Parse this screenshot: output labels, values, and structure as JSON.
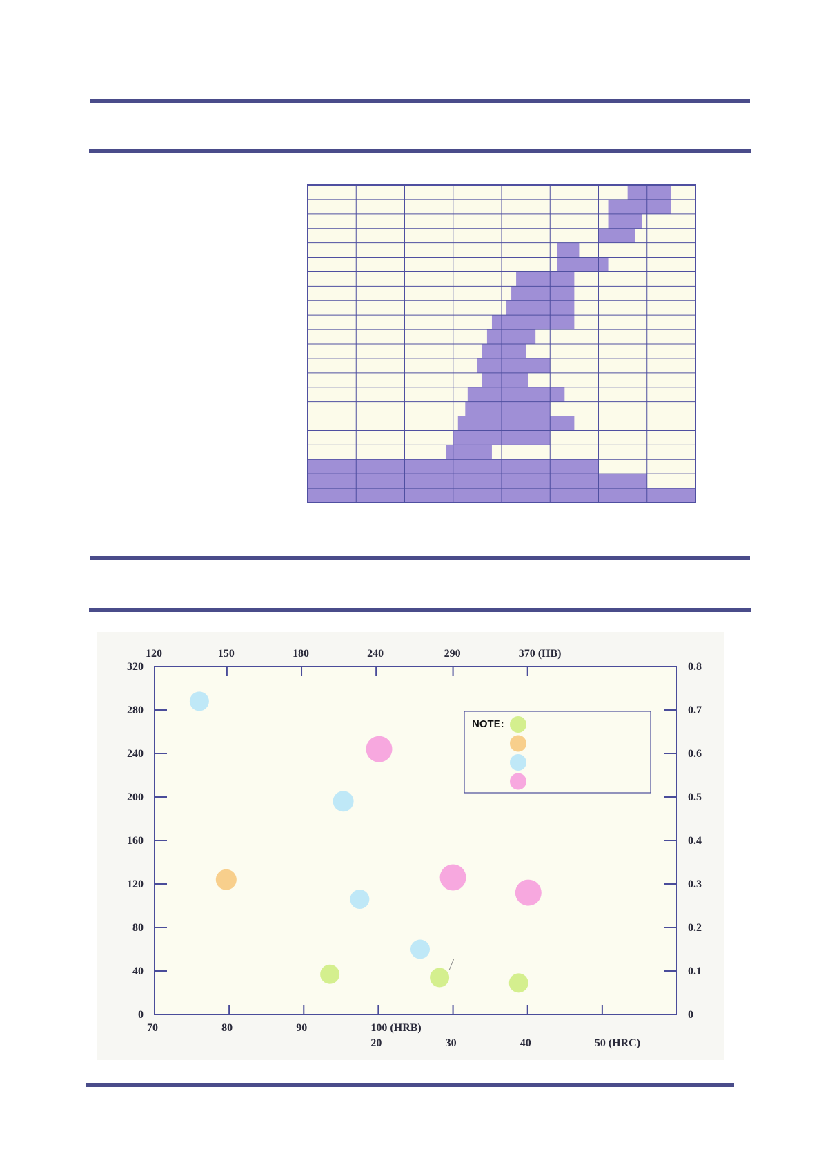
{
  "colors": {
    "rule": "#4a4c8a",
    "grid_line": "#4f4fa0",
    "grid_empty": "#fcfbea",
    "grid_filled": "#9f8fd6",
    "plot_bg": "#fcfcf0",
    "axis": "#4a4c9a",
    "green": "#d4ef8e",
    "orange": "#f8cf8c",
    "blue": "#bfe8f7",
    "pink": "#f7a8df"
  },
  "chart_data": [
    {
      "type": "heatmap",
      "title": "",
      "grid": {
        "cols": 8,
        "rows": 22
      },
      "filled_cells": [
        {
          "row": 0,
          "from": 6.6,
          "to": 7.5
        },
        {
          "row": 1,
          "from": 6.2,
          "to": 7.5
        },
        {
          "row": 2,
          "from": 6.2,
          "to": 6.9
        },
        {
          "row": 3,
          "from": 6.0,
          "to": 6.75
        },
        {
          "row": 4,
          "from": 5.15,
          "to": 5.6
        },
        {
          "row": 5,
          "from": 5.15,
          "to": 6.2
        },
        {
          "row": 6,
          "from": 4.3,
          "to": 5.5
        },
        {
          "row": 7,
          "from": 4.2,
          "to": 5.5
        },
        {
          "row": 8,
          "from": 4.1,
          "to": 5.5
        },
        {
          "row": 9,
          "from": 3.8,
          "to": 5.5
        },
        {
          "row": 10,
          "from": 3.7,
          "to": 4.7
        },
        {
          "row": 11,
          "from": 3.6,
          "to": 4.5
        },
        {
          "row": 12,
          "from": 3.5,
          "to": 5.0
        },
        {
          "row": 13,
          "from": 3.6,
          "to": 4.55
        },
        {
          "row": 14,
          "from": 3.3,
          "to": 5.3
        },
        {
          "row": 15,
          "from": 3.25,
          "to": 5.0
        },
        {
          "row": 16,
          "from": 3.1,
          "to": 5.5
        },
        {
          "row": 17,
          "from": 3.0,
          "to": 5.0
        },
        {
          "row": 18,
          "from": 2.85,
          "to": 3.8
        },
        {
          "row": 19,
          "from": 0,
          "to": 6.0
        },
        {
          "row": 20,
          "from": 0,
          "to": 7.0
        },
        {
          "row": 21,
          "from": 0,
          "to": 8.0
        }
      ]
    },
    {
      "type": "scatter",
      "title": "",
      "ylim": [
        0,
        320
      ],
      "y_ticks": [
        "0",
        "40",
        "80",
        "120",
        "160",
        "200",
        "240",
        "280",
        "320"
      ],
      "y2lim": [
        0,
        0.8
      ],
      "y2_ticks": [
        "0",
        "0.1",
        "0.2",
        "0.3",
        "0.4",
        "0.5",
        "0.6",
        "0.7",
        "0.8"
      ],
      "xlim": [
        70,
        140
      ],
      "x_ticks_hrb": [
        {
          "x": 70,
          "label": "70"
        },
        {
          "x": 80,
          "label": "80"
        },
        {
          "x": 90,
          "label": "90"
        },
        {
          "x": 100,
          "label": "100 (HRB)"
        }
      ],
      "x_ticks_hrc": [
        {
          "x": 100,
          "label": "20"
        },
        {
          "x": 110,
          "label": "30"
        },
        {
          "x": 120,
          "label": "40"
        },
        {
          "x": 130,
          "label": "50 (HRC)"
        }
      ],
      "x_ticks_hb": [
        {
          "x": 70,
          "label": "120"
        },
        {
          "x": 79.7,
          "label": "150"
        },
        {
          "x": 89.7,
          "label": "180"
        },
        {
          "x": 99.7,
          "label": "240"
        },
        {
          "x": 110,
          "label": "290"
        },
        {
          "x": 120,
          "label": "370 (HB)"
        }
      ],
      "legend": {
        "title": "NOTE:",
        "position": "top-right",
        "groups": [
          "green",
          "orange",
          "blue",
          "pink"
        ]
      },
      "points": [
        {
          "x": 76,
          "y": 288,
          "group": "blue",
          "size": 14
        },
        {
          "x": 79.6,
          "y": 124,
          "group": "orange",
          "size": 15
        },
        {
          "x": 93.5,
          "y": 37,
          "group": "green",
          "size": 14
        },
        {
          "x": 95.3,
          "y": 196,
          "group": "blue",
          "size": 15
        },
        {
          "x": 97.5,
          "y": 106,
          "group": "blue",
          "size": 14
        },
        {
          "x": 100.1,
          "y": 244,
          "group": "pink",
          "size": 19
        },
        {
          "x": 105.6,
          "y": 60,
          "group": "blue",
          "size": 14
        },
        {
          "x": 108.2,
          "y": 34,
          "group": "green",
          "size": 14
        },
        {
          "x": 110,
          "y": 126,
          "group": "pink",
          "size": 19
        },
        {
          "x": 118.8,
          "y": 29,
          "group": "green",
          "size": 14
        },
        {
          "x": 120.1,
          "y": 112,
          "group": "pink",
          "size": 19
        }
      ]
    }
  ]
}
